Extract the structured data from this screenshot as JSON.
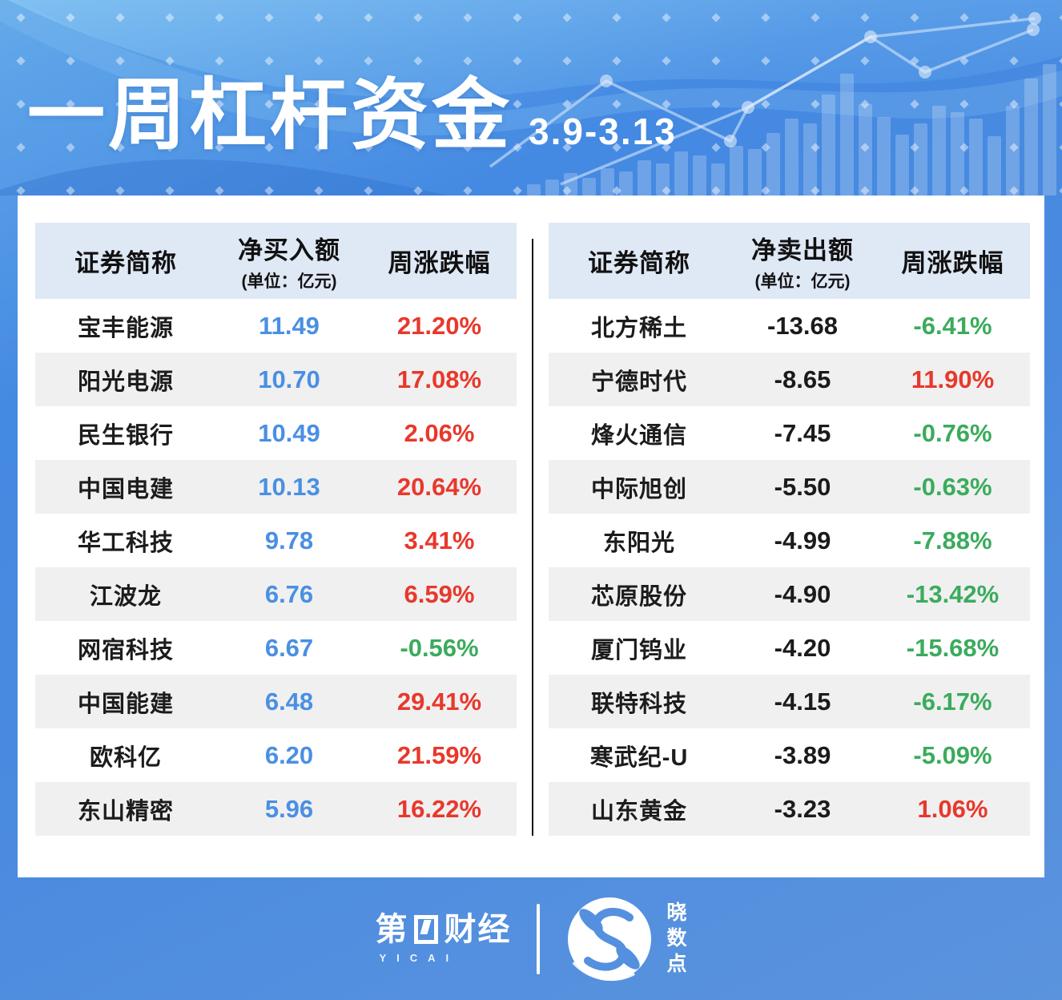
{
  "title": {
    "main": "一周杠杆资金",
    "date_range": "3.9-3.13"
  },
  "colors": {
    "blue": "#4a8fe3",
    "red": "#e8382b",
    "green": "#3bab5c",
    "head-bg": "#dfe8f5",
    "row-alt": "#f0f0f1",
    "ink": "#1b1b1b"
  },
  "tables": [
    {
      "id": "net-buy",
      "value_class": "blue",
      "headers": {
        "name": "证券简称",
        "value": "净买入额",
        "unit": "(单位：亿元)",
        "pct": "周涨跌幅"
      },
      "rows": [
        {
          "name": "宝丰能源",
          "value": "11.49",
          "pct": "21.20%",
          "dir": "up"
        },
        {
          "name": "阳光电源",
          "value": "10.70",
          "pct": "17.08%",
          "dir": "up"
        },
        {
          "name": "民生银行",
          "value": "10.49",
          "pct": "2.06%",
          "dir": "up"
        },
        {
          "name": "中国电建",
          "value": "10.13",
          "pct": "20.64%",
          "dir": "up"
        },
        {
          "name": "华工科技",
          "value": "9.78",
          "pct": "3.41%",
          "dir": "up"
        },
        {
          "name": "江波龙",
          "value": "6.76",
          "pct": "6.59%",
          "dir": "up"
        },
        {
          "name": "网宿科技",
          "value": "6.67",
          "pct": "-0.56%",
          "dir": "down"
        },
        {
          "name": "中国能建",
          "value": "6.48",
          "pct": "29.41%",
          "dir": "up"
        },
        {
          "name": "欧科亿",
          "value": "6.20",
          "pct": "21.59%",
          "dir": "up"
        },
        {
          "name": "东山精密",
          "value": "5.96",
          "pct": "16.22%",
          "dir": "up"
        }
      ]
    },
    {
      "id": "net-sell",
      "value_class": "dark",
      "headers": {
        "name": "证券简称",
        "value": "净卖出额",
        "unit": "(单位：亿元)",
        "pct": "周涨跌幅"
      },
      "rows": [
        {
          "name": "北方稀土",
          "value": "-13.68",
          "pct": "-6.41%",
          "dir": "down"
        },
        {
          "name": "宁德时代",
          "value": "-8.65",
          "pct": "11.90%",
          "dir": "up"
        },
        {
          "name": "烽火通信",
          "value": "-7.45",
          "pct": "-0.76%",
          "dir": "down"
        },
        {
          "name": "中际旭创",
          "value": "-5.50",
          "pct": "-0.63%",
          "dir": "down"
        },
        {
          "name": "东阳光",
          "value": "-4.99",
          "pct": "-7.88%",
          "dir": "down"
        },
        {
          "name": "芯原股份",
          "value": "-4.90",
          "pct": "-13.42%",
          "dir": "down"
        },
        {
          "name": "厦门钨业",
          "value": "-4.20",
          "pct": "-15.68%",
          "dir": "down"
        },
        {
          "name": "联特科技",
          "value": "-4.15",
          "pct": "-6.17%",
          "dir": "down"
        },
        {
          "name": "寒武纪-U",
          "value": "-3.89",
          "pct": "-5.09%",
          "dir": "down"
        },
        {
          "name": "山东黄金",
          "value": "-3.23",
          "pct": "1.06%",
          "dir": "up"
        }
      ]
    }
  ],
  "chart_data": [
    {
      "type": "table",
      "title": "融资净买入额 (单位：亿元) 与周涨跌幅",
      "columns": [
        "证券简称",
        "净买入额(亿元)",
        "周涨跌幅"
      ],
      "rows": [
        [
          "宝丰能源",
          11.49,
          "21.20%"
        ],
        [
          "阳光电源",
          10.7,
          "17.08%"
        ],
        [
          "民生银行",
          10.49,
          "2.06%"
        ],
        [
          "中国电建",
          10.13,
          "20.64%"
        ],
        [
          "华工科技",
          9.78,
          "3.41%"
        ],
        [
          "江波龙",
          6.76,
          "6.59%"
        ],
        [
          "网宿科技",
          6.67,
          "-0.56%"
        ],
        [
          "中国能建",
          6.48,
          "29.41%"
        ],
        [
          "欧科亿",
          6.2,
          "21.59%"
        ],
        [
          "东山精密",
          5.96,
          "16.22%"
        ]
      ]
    },
    {
      "type": "table",
      "title": "融资净卖出额 (单位：亿元) 与周涨跌幅",
      "columns": [
        "证券简称",
        "净卖出额(亿元)",
        "周涨跌幅"
      ],
      "rows": [
        [
          "北方稀土",
          -13.68,
          "-6.41%"
        ],
        [
          "宁德时代",
          -8.65,
          "11.90%"
        ],
        [
          "烽火通信",
          -7.45,
          "-0.76%"
        ],
        [
          "中际旭创",
          -5.5,
          "-0.63%"
        ],
        [
          "东阳光",
          -4.99,
          "-7.88%"
        ],
        [
          "芯原股份",
          -4.9,
          "-13.42%"
        ],
        [
          "厦门钨业",
          -4.2,
          "-15.68%"
        ],
        [
          "联特科技",
          -4.15,
          "-6.17%"
        ],
        [
          "寒武纪-U",
          -3.89,
          "-5.09%"
        ],
        [
          "山东黄金",
          -3.23,
          "1.06%"
        ]
      ]
    }
  ],
  "footer": {
    "yicai_prefix": "第",
    "yicai_suffix": "财经",
    "yicai_sub": "YICAI",
    "xsd_chars": [
      "晓",
      "数",
      "点"
    ]
  }
}
